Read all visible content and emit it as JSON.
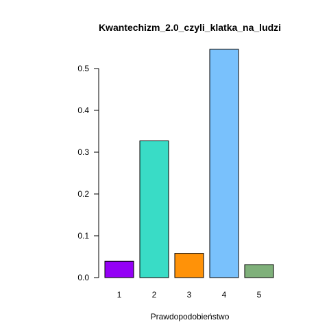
{
  "chart_data": {
    "type": "bar",
    "title": "Kwantechizm_2.0_czyli_klatka_na_ludzi",
    "xlabel": "Prawdopodobieństwo",
    "ylabel": "",
    "categories": [
      "1",
      "2",
      "3",
      "4",
      "5"
    ],
    "values": [
      0.039,
      0.327,
      0.058,
      0.546,
      0.031
    ],
    "colors": [
      "#9400f5",
      "#39dcc6",
      "#ff9208",
      "#79c1fc",
      "#7fb07a"
    ],
    "ylim": [
      0,
      0.5
    ],
    "yticks": [
      0.0,
      0.1,
      0.2,
      0.3,
      0.4,
      0.5
    ],
    "ytick_labels": [
      "0.0",
      "0.1",
      "0.2",
      "0.3",
      "0.4",
      "0.5"
    ],
    "grid": false,
    "legend": "none"
  }
}
